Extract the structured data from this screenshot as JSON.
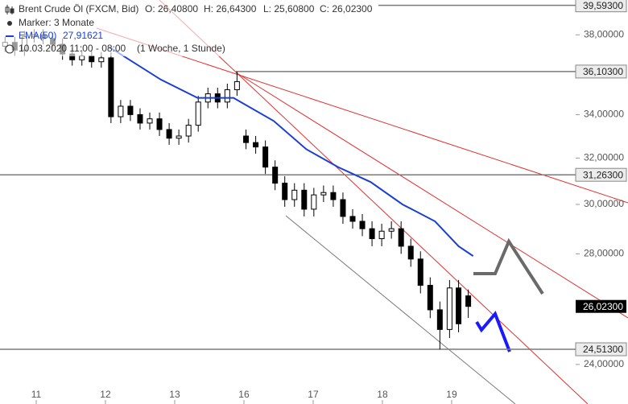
{
  "chart_data": {
    "type": "candlestick",
    "title": "Brent Crude Öl (FXCM, Bid)",
    "ohlc_labels": [
      "O: 26,40800",
      "H: 26,64300",
      "L: 25,60800",
      "C: 26,02300"
    ],
    "marker": "Marker: 3 Monate",
    "period": "10.03.2020 11:00 - 08:00",
    "interval": "(1 Woche, 1 Stunde)",
    "log_scale": true,
    "candle_color": "#000000",
    "x": [
      -0.45,
      -0.31,
      -0.17,
      -0.03,
      0.1,
      0.24,
      0.38,
      0.52,
      0.66,
      0.8,
      0.94,
      1.08,
      1.22,
      1.36,
      1.5,
      1.64,
      1.78,
      1.92,
      2.06,
      2.2,
      2.34,
      2.48,
      2.62,
      2.76,
      2.9,
      3.03,
      3.17,
      3.31,
      3.45,
      3.59,
      3.73,
      3.87,
      4.01,
      4.15,
      4.29,
      4.43,
      4.57,
      4.71,
      4.85,
      4.99,
      5.13,
      5.27,
      5.41,
      5.55,
      5.69,
      5.83,
      5.97,
      6.1,
      6.24
    ],
    "open": [
      37.4,
      37.6,
      37.2,
      37.9,
      38.0,
      37.8,
      37.5,
      37.0,
      36.7,
      36.9,
      36.6,
      36.8,
      33.9,
      34.4,
      34.0,
      33.6,
      33.8,
      33.3,
      32.9,
      33.0,
      33.5,
      34.6,
      35.0,
      34.6,
      35.2,
      33.0,
      32.7,
      32.5,
      31.6,
      30.9,
      30.2,
      30.6,
      29.8,
      30.4,
      30.5,
      30.2,
      29.5,
      29.3,
      29.0,
      28.6,
      28.9,
      29.0,
      28.3,
      27.8,
      26.8,
      25.9,
      25.2,
      26.7,
      26.408
    ],
    "high": [
      37.9,
      37.9,
      38.2,
      38.3,
      38.3,
      38.1,
      37.8,
      37.3,
      37.2,
      37.2,
      37.1,
      37.1,
      34.7,
      34.7,
      34.3,
      34.1,
      34.1,
      33.6,
      33.3,
      33.8,
      34.9,
      35.3,
      35.3,
      35.5,
      36.1,
      33.3,
      33.0,
      32.8,
      31.9,
      31.2,
      30.9,
      30.9,
      30.7,
      30.8,
      30.8,
      30.5,
      29.8,
      29.6,
      29.3,
      29.2,
      29.3,
      29.3,
      28.6,
      28.1,
      27.1,
      26.2,
      27.0,
      27.0,
      26.643
    ],
    "low": [
      37.1,
      36.9,
      36.9,
      37.6,
      37.5,
      37.2,
      36.7,
      36.4,
      36.4,
      36.3,
      36.3,
      33.6,
      33.6,
      33.7,
      33.3,
      33.3,
      33.0,
      32.6,
      32.6,
      32.7,
      33.2,
      34.3,
      34.3,
      34.3,
      34.9,
      32.4,
      32.2,
      31.3,
      30.6,
      29.9,
      29.9,
      29.5,
      29.5,
      30.1,
      29.9,
      29.2,
      29.0,
      28.7,
      28.3,
      28.3,
      28.6,
      28.0,
      27.5,
      26.5,
      25.6,
      24.51,
      24.9,
      25.1,
      25.608
    ],
    "close": [
      37.6,
      37.2,
      37.9,
      38.0,
      37.8,
      37.5,
      37.0,
      36.7,
      36.9,
      36.6,
      36.8,
      33.9,
      34.4,
      34.0,
      33.6,
      33.8,
      33.3,
      32.9,
      33.0,
      33.5,
      34.6,
      35.0,
      34.6,
      35.2,
      35.6,
      32.7,
      32.5,
      31.6,
      30.9,
      30.2,
      30.6,
      29.8,
      30.4,
      30.5,
      30.2,
      29.5,
      29.3,
      29.0,
      28.6,
      28.9,
      29.0,
      28.3,
      27.8,
      26.8,
      25.9,
      25.2,
      26.7,
      25.4,
      26.023
    ],
    "overlay": {
      "name": "EMA(50)",
      "value_label": "27,91621",
      "color": "#1a3fd6",
      "x": [
        1.05,
        1.8,
        2.33,
        2.85,
        3.43,
        3.9,
        4.36,
        4.83,
        5.29,
        5.76,
        6.1,
        6.31
      ],
      "values": [
        37.37,
        35.7,
        34.8,
        34.8,
        33.7,
        32.4,
        31.6,
        30.95,
        30.0,
        29.3,
        28.3,
        27.91621
      ]
    },
    "levels": [
      {
        "value": 39.593,
        "label": "39,59300"
      },
      {
        "value": 36.103,
        "label": "36,10300"
      },
      {
        "value": 31.263,
        "label": "31,26300"
      },
      {
        "value": 24.513,
        "label": "24,51300"
      }
    ],
    "last_price": {
      "value": 26.023,
      "label": "26,02300"
    },
    "ylim": [
      23.28,
      39.89
    ],
    "yticks": [
      {
        "value": 38,
        "label": "38,00000"
      },
      {
        "value": 34,
        "label": "34,00000"
      },
      {
        "value": 32,
        "label": "32,00000"
      },
      {
        "value": 30,
        "label": "30,00000"
      },
      {
        "value": 28,
        "label": "28,00000"
      },
      {
        "value": 24,
        "label": "24,00000"
      }
    ],
    "xlim": [
      -0.523,
      8.547
    ],
    "xticks": [
      {
        "value": 0,
        "label": "11"
      },
      {
        "value": 1,
        "label": "12"
      },
      {
        "value": 2,
        "label": "13"
      },
      {
        "value": 3,
        "label": "16"
      },
      {
        "value": 4,
        "label": "17"
      },
      {
        "value": 5,
        "label": "18"
      },
      {
        "value": 6,
        "label": "19"
      }
    ]
  }
}
